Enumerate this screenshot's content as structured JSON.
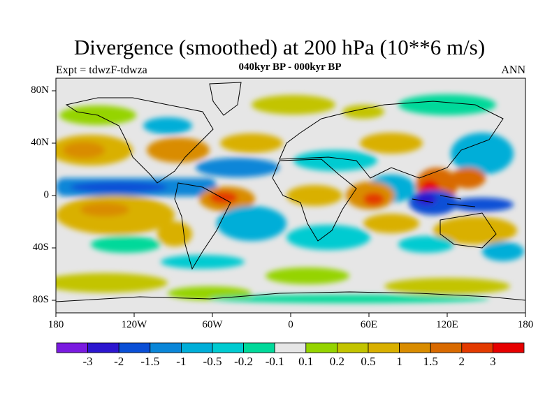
{
  "title": "Divergence (smoothed) at 200 hPa (10**6 m/s)",
  "left_label": "Expt = tdwzF-tdwza",
  "center_label": "040kyr BP - 000kyr BP",
  "right_label": "ANN",
  "lat_ticks": [
    "80N",
    "40N",
    "0",
    "40S",
    "80S"
  ],
  "lon_ticks": [
    "180",
    "120W",
    "60W",
    "0",
    "60E",
    "120E",
    "180"
  ],
  "colorbar": {
    "labels": [
      "-3",
      "-2",
      "-1.5",
      "-1",
      "-0.5",
      "-0.2",
      "-0.1",
      "0.1",
      "0.2",
      "0.5",
      "1",
      "1.5",
      "2",
      "3"
    ],
    "colors": [
      "#7a1ae0",
      "#2c16cf",
      "#0a4fd6",
      "#0a86d8",
      "#00aed8",
      "#00cbd1",
      "#00d99a",
      "#e6e6e6",
      "#95d400",
      "#c3c400",
      "#d9b000",
      "#d98c00",
      "#d96a00",
      "#e33a00",
      "#e60000"
    ]
  },
  "map_colors": {
    "land_outline": "#000000",
    "zero_band": "#e6e6e6"
  }
}
